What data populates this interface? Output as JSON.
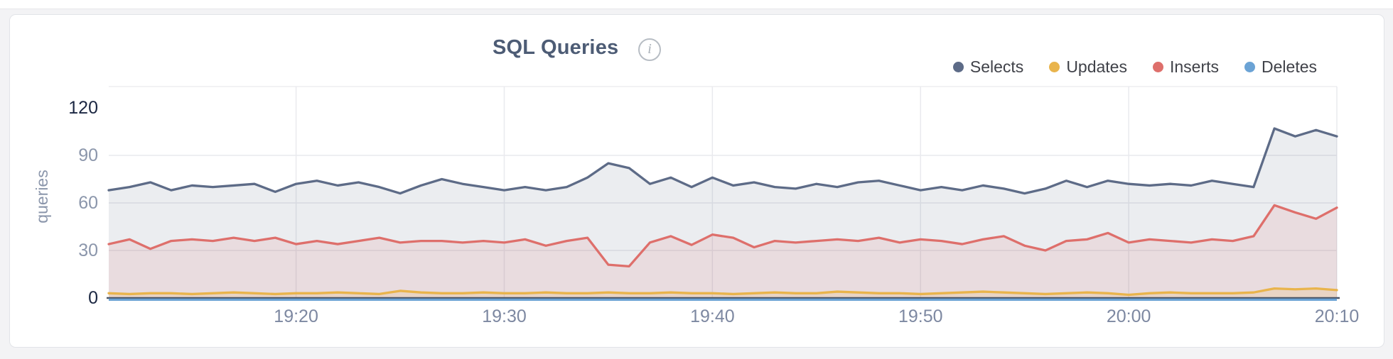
{
  "card": {
    "title": "SQL Queries",
    "info_glyph": "i"
  },
  "colors": {
    "selects": "#5d6b87",
    "updates": "#e9b44c",
    "inserts": "#de6f6b",
    "deletes": "#6ba3d5",
    "grid": "#e9eaee",
    "axis": "#4b5465"
  },
  "chart_data": {
    "type": "area",
    "title": "SQL Queries",
    "xlabel": "",
    "ylabel": "queries",
    "ylim": [
      0,
      120
    ],
    "yticks": [
      0,
      30,
      60,
      90,
      120
    ],
    "x_start": "19:11",
    "x_step_minutes": 1,
    "xticks": [
      "19:20",
      "19:30",
      "19:40",
      "19:50",
      "20:00",
      "20:10"
    ],
    "grid": true,
    "legend_position": "top-right",
    "series": [
      {
        "name": "Selects",
        "color": "#5d6b87",
        "fill_opacity": 0.12,
        "values": [
          68,
          70,
          73,
          68,
          71,
          70,
          71,
          72,
          67,
          72,
          74,
          71,
          73,
          70,
          66,
          71,
          75,
          72,
          70,
          68,
          70,
          68,
          70,
          76,
          85,
          82,
          72,
          76,
          70,
          76,
          71,
          73,
          70,
          69,
          72,
          70,
          73,
          74,
          71,
          68,
          70,
          68,
          71,
          69,
          66,
          69,
          74,
          70,
          74,
          72,
          71,
          72,
          71,
          74,
          72,
          70,
          107,
          102,
          106,
          102
        ]
      },
      {
        "name": "Updates",
        "color": "#e9b44c",
        "fill_opacity": 0.18,
        "values": [
          3,
          2.5,
          3,
          3,
          2.5,
          3,
          3.5,
          3,
          2.5,
          3,
          3,
          3.5,
          3,
          2.5,
          4.5,
          3.5,
          3,
          3,
          3.5,
          3,
          3,
          3.5,
          3,
          3,
          3.5,
          3,
          3,
          3.5,
          3,
          3,
          2.5,
          3,
          3.5,
          3,
          3,
          4,
          3.5,
          3,
          3,
          2.5,
          3,
          3.5,
          4,
          3.5,
          3,
          2.5,
          3,
          3.5,
          3,
          2,
          3,
          3.5,
          3,
          3,
          3,
          3.5,
          6,
          5.5,
          6,
          5
        ]
      },
      {
        "name": "Inserts",
        "color": "#de6f6b",
        "fill_opacity": 0.13,
        "values": [
          34,
          37,
          31,
          36,
          37,
          36,
          38,
          36,
          38,
          34,
          36,
          34,
          36,
          38,
          35,
          36,
          36,
          35,
          36,
          35,
          37,
          33,
          36,
          38,
          21,
          20,
          35,
          39,
          33.5,
          40,
          38,
          32,
          36,
          35,
          36,
          37,
          36,
          38,
          35,
          37,
          36,
          34,
          37,
          39,
          33,
          30,
          36,
          37,
          41,
          35,
          37,
          36,
          35,
          37,
          36,
          39,
          58.5,
          54,
          50,
          57
        ]
      },
      {
        "name": "Deletes",
        "color": "#6ba3d5",
        "fill_opacity": 0,
        "values": [
          0.5,
          0.5,
          0.5,
          0.5,
          0.5,
          0.5,
          0.5,
          0.5,
          0.5,
          0.5,
          0.5,
          0.5,
          0.5,
          0.5,
          0.5,
          0.5,
          0.5,
          0.5,
          0.5,
          0.5,
          0.5,
          0.5,
          0.5,
          0.5,
          0.5,
          0.5,
          0.5,
          0.5,
          0.5,
          0.5,
          0.5,
          0.5,
          0.5,
          0.5,
          0.5,
          0.5,
          0.5,
          0.5,
          0.5,
          0.5,
          0.5,
          0.5,
          0.5,
          0.5,
          0.5,
          0.5,
          0.5,
          0.5,
          0.5,
          0.5,
          0.5,
          0.5,
          0.5,
          0.5,
          0.5,
          0.5,
          0.5,
          0.5,
          0.5,
          0.5
        ]
      }
    ]
  }
}
